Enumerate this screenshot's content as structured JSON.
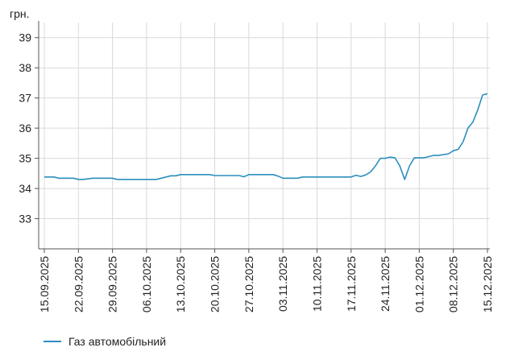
{
  "chart_data": {
    "type": "line",
    "ylabel": "грн.",
    "ylim": [
      32,
      39.5
    ],
    "y_ticks": [
      33,
      34,
      35,
      36,
      37,
      38,
      39
    ],
    "x_ticks": [
      "15.09.2025",
      "22.09.2025",
      "29.09.2025",
      "06.10.2025",
      "13.10.2025",
      "20.10.2025",
      "27.10.2025",
      "03.11.2025",
      "10.11.2025",
      "17.11.2025",
      "24.11.2025",
      "01.12.2025",
      "08.12.2025",
      "15.12.2025"
    ],
    "grid": true,
    "legend_position": "bottom-left",
    "colors": {
      "line": "#2a8fbd",
      "grid": "#d9d9d9",
      "axis": "#555555"
    },
    "series": [
      {
        "name": "Газ автомобільний",
        "x": [
          "15.09.2025",
          "17.09.2025",
          "18.09.2025",
          "21.09.2025",
          "22.09.2025",
          "23.09.2025",
          "25.09.2025",
          "29.09.2025",
          "30.09.2025",
          "01.10.2025",
          "06.10.2025",
          "08.10.2025",
          "10.10.2025",
          "11.10.2025",
          "12.10.2025",
          "13.10.2025",
          "19.10.2025",
          "20.10.2025",
          "25.10.2025",
          "26.10.2025",
          "27.10.2025",
          "01.11.2025",
          "02.11.2025",
          "03.11.2025",
          "06.11.2025",
          "07.11.2025",
          "17.11.2025",
          "18.11.2025",
          "19.11.2025",
          "20.11.2025",
          "21.11.2025",
          "22.11.2025",
          "23.11.2025",
          "24.11.2025",
          "25.11.2025",
          "26.11.2025",
          "27.11.2025",
          "28.11.2025",
          "29.11.2025",
          "30.11.2025",
          "01.12.2025",
          "02.12.2025",
          "04.12.2025",
          "05.12.2025",
          "07.12.2025",
          "08.12.2025",
          "09.12.2025",
          "10.12.2025",
          "11.12.2025",
          "12.12.2025",
          "13.12.2025",
          "14.12.2025",
          "15.12.2025"
        ],
        "values": [
          34.38,
          34.38,
          34.34,
          34.34,
          34.3,
          34.3,
          34.34,
          34.34,
          34.3,
          34.3,
          34.3,
          34.3,
          34.38,
          34.42,
          34.42,
          34.46,
          34.46,
          34.43,
          34.43,
          34.39,
          34.46,
          34.46,
          34.41,
          34.34,
          34.34,
          34.38,
          34.38,
          34.44,
          34.4,
          34.45,
          34.55,
          34.75,
          35.0,
          35.0,
          35.04,
          35.02,
          34.75,
          34.3,
          34.75,
          35.02,
          35.02,
          35.02,
          35.1,
          35.1,
          35.15,
          35.25,
          35.3,
          35.55,
          36.0,
          36.2,
          36.6,
          37.1,
          37.14
        ]
      }
    ]
  }
}
